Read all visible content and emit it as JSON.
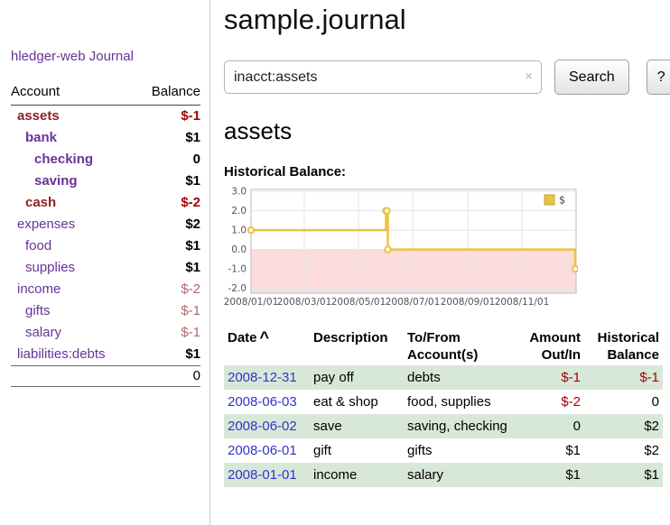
{
  "app_title": "hledger-web",
  "sidebar": {
    "journal_link": "Journal",
    "accounts_table": {
      "account_header": "Account",
      "balance_header": "Balance",
      "rows": [
        {
          "name": "assets",
          "balance": "$-1",
          "indent": 1,
          "name_style": "maroon-bold",
          "bal_style": "neg-bold"
        },
        {
          "name": "bank",
          "balance": "$1",
          "indent": 2,
          "name_style": "purple-bold",
          "bal_style": "bold"
        },
        {
          "name": "checking",
          "balance": "0",
          "indent": 3,
          "name_style": "purple-bold",
          "bal_style": "bold"
        },
        {
          "name": "saving",
          "balance": "$1",
          "indent": 3,
          "name_style": "purple-bold",
          "bal_style": "bold"
        },
        {
          "name": "cash",
          "balance": "$-2",
          "indent": 2,
          "name_style": "maroon-bold",
          "bal_style": "neg-bold"
        },
        {
          "name": "expenses",
          "balance": "$2",
          "indent": 1,
          "name_style": "purple",
          "bal_style": "bold"
        },
        {
          "name": "food",
          "balance": "$1",
          "indent": 2,
          "name_style": "purple",
          "bal_style": "bold"
        },
        {
          "name": "supplies",
          "balance": "$1",
          "indent": 2,
          "name_style": "purple",
          "bal_style": "bold"
        },
        {
          "name": "income",
          "balance": "$-2",
          "indent": 1,
          "name_style": "purple",
          "bal_style": "neg"
        },
        {
          "name": "gifts",
          "balance": "$-1",
          "indent": 2,
          "name_style": "purple",
          "bal_style": "neg"
        },
        {
          "name": "salary",
          "balance": "$-1",
          "indent": 2,
          "name_style": "purple",
          "bal_style": "neg"
        },
        {
          "name": "liabilities:debts",
          "balance": "$1",
          "indent": 1,
          "name_style": "purple",
          "bal_style": "bold"
        }
      ],
      "total": "0"
    }
  },
  "main": {
    "title": "sample.journal",
    "search": {
      "value": "inacct:assets",
      "clear_icon": "×",
      "search_button": "Search",
      "help_button": "?"
    },
    "account_heading": "assets",
    "chart_title": "Historical Balance:"
  },
  "chart_data": {
    "type": "line",
    "title": "Historical Balance",
    "x_domain": [
      "2008-01-01",
      "2009-01-01"
    ],
    "ylim": [
      -2.25,
      3.1
    ],
    "y_ticks": [
      3.0,
      2.0,
      1.0,
      0.0,
      -1.0,
      -2.0
    ],
    "y_tick_labels": [
      "3.0",
      "2.0",
      "1.0",
      "0.0",
      "-1.0",
      "-2.0"
    ],
    "x_ticks": [
      {
        "date": "2008-01-01",
        "label": "2008/01/01"
      },
      {
        "date": "2008-03-01",
        "label": "2008/03/01"
      },
      {
        "date": "2008-05-01",
        "label": "2008/05/01"
      },
      {
        "date": "2008-07-01",
        "label": "2008/07/01"
      },
      {
        "date": "2008-09-01",
        "label": "2008/09/01"
      },
      {
        "date": "2008-11-01",
        "label": "2008/11/01"
      }
    ],
    "grid": true,
    "legend": {
      "position": "top-right",
      "entries": [
        {
          "label": "$",
          "color": "#edc240"
        }
      ]
    },
    "negative_region": {
      "from": 0,
      "color": "#fcdcdc"
    },
    "series": [
      {
        "name": "$",
        "color": "#edc240",
        "step": true,
        "points": [
          {
            "date": "2008-01-01",
            "value": 1
          },
          {
            "date": "2008-06-01",
            "value": 2
          },
          {
            "date": "2008-06-02",
            "value": 2
          },
          {
            "date": "2008-06-03",
            "value": 0
          },
          {
            "date": "2008-12-31",
            "value": -1
          }
        ]
      }
    ]
  },
  "register": {
    "headers": {
      "date": "Date",
      "sort_indicator": "^",
      "description": "Description",
      "tofrom": [
        "To/From",
        "Account(s)"
      ],
      "amount": [
        "Amount",
        "Out/In"
      ],
      "historical": [
        "Historical",
        "Balance"
      ]
    },
    "rows": [
      {
        "date": "2008-12-31",
        "description": "pay off",
        "accounts": "debts",
        "amount": "$-1",
        "historical": "$-1"
      },
      {
        "date": "2008-06-03",
        "description": "eat & shop",
        "accounts": "food, supplies",
        "amount": "$-2",
        "historical": "0"
      },
      {
        "date": "2008-06-02",
        "description": "save",
        "accounts": "saving, checking",
        "amount": "0",
        "historical": "$2"
      },
      {
        "date": "2008-06-01",
        "description": "gift",
        "accounts": "gifts",
        "amount": "$1",
        "historical": "$2"
      },
      {
        "date": "2008-01-01",
        "description": "income",
        "accounts": "salary",
        "amount": "$1",
        "historical": "$1"
      }
    ]
  },
  "colors": {
    "link_purple": "#663399",
    "date_link_blue": "#3333cc",
    "negative_red": "#a40000",
    "muted_negative_red": "#b06868",
    "row_green": "#d8e8d8",
    "series_gold": "#edc240",
    "negative_region_pink": "#fcdcdc"
  }
}
